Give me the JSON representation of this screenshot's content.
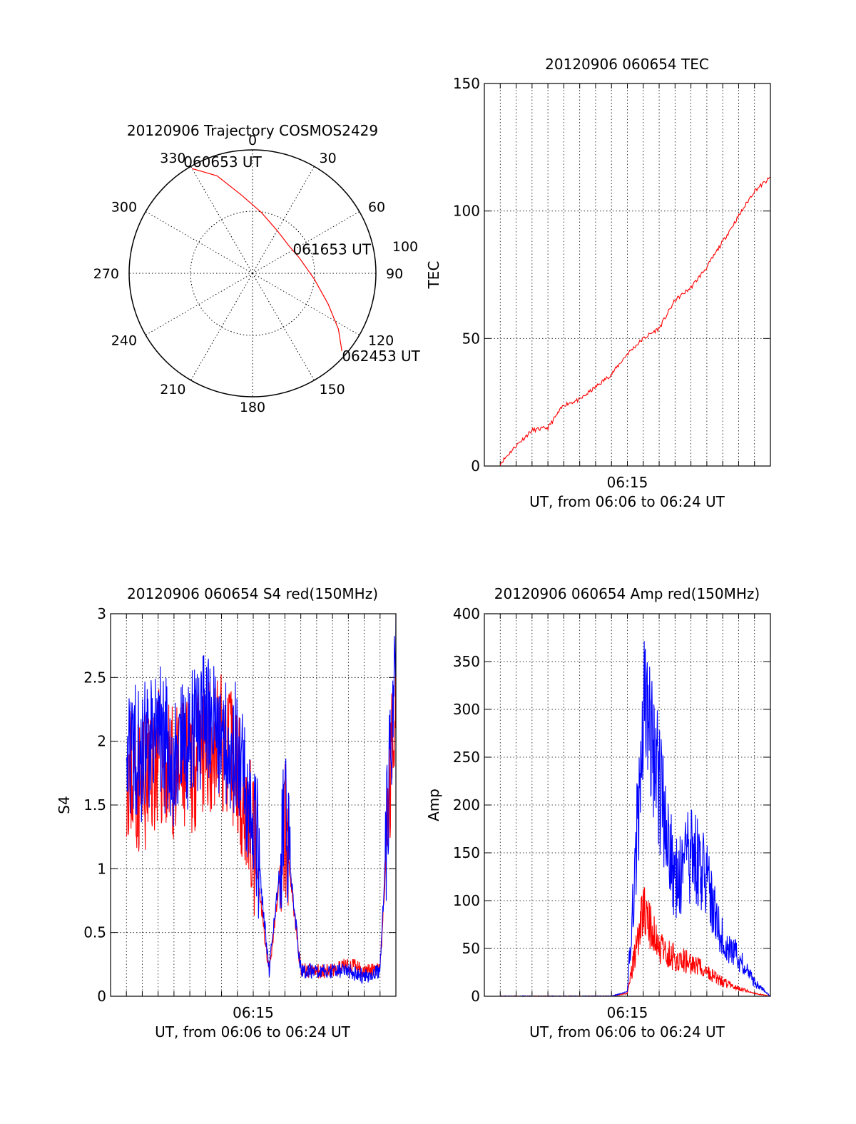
{
  "colors": {
    "red": "#ff0000",
    "blue": "#0000ff",
    "axis": "#000000",
    "grid": "#000000"
  },
  "chart_data": [
    {
      "id": "trajectory",
      "type": "polar",
      "title": "20120906 Trajectory COSMOS2429",
      "azimuth_ticks": [
        "0",
        "30",
        "60",
        "90",
        "120",
        "150",
        "180",
        "210",
        "240",
        "270",
        "300",
        "330"
      ],
      "extra_label": "100",
      "track": [
        {
          "az": 330,
          "el_frac": 0.98
        },
        {
          "az": 340,
          "el_frac": 0.84
        },
        {
          "az": 352,
          "el_frac": 0.64
        },
        {
          "az": 8,
          "el_frac": 0.5
        },
        {
          "az": 30,
          "el_frac": 0.4
        },
        {
          "az": 52,
          "el_frac": 0.37
        },
        {
          "az": 72,
          "el_frac": 0.4
        },
        {
          "az": 95,
          "el_frac": 0.5
        },
        {
          "az": 112,
          "el_frac": 0.66
        },
        {
          "az": 123,
          "el_frac": 0.83
        },
        {
          "az": 131,
          "el_frac": 0.96
        }
      ],
      "time_labels": [
        {
          "text": "060653 UT",
          "at": "start"
        },
        {
          "text": "061653 UT",
          "at": "middle"
        },
        {
          "text": "062453 UT",
          "at": "end"
        }
      ]
    },
    {
      "id": "tec",
      "type": "line",
      "title": "20120906 060654 TEC",
      "xlabel": "UT, from 06:06 to 06:24 UT",
      "ylabel": "TEC",
      "xlim": [
        "06:06",
        "06:24"
      ],
      "ylim": [
        0,
        150
      ],
      "yticks": [
        "0",
        "50",
        "100",
        "150"
      ],
      "xticks": [
        "06:15"
      ],
      "grid": true,
      "series": [
        {
          "color": "red",
          "x": [
            "06:07",
            "06:08",
            "06:09",
            "06:10",
            "06:11",
            "06:12",
            "06:13",
            "06:14",
            "06:15",
            "06:16",
            "06:17",
            "06:18",
            "06:19",
            "06:20",
            "06:21",
            "06:22",
            "06:23",
            "06:24"
          ],
          "y": [
            1,
            8,
            14,
            15,
            24,
            26,
            31,
            36,
            44,
            50,
            54,
            65,
            70,
            78,
            88,
            98,
            108,
            113
          ]
        }
      ]
    },
    {
      "id": "s4",
      "type": "line",
      "title": "20120906 060654 S4 red(150MHz)",
      "xlabel": "UT, from 06:06 to 06:24 UT",
      "ylabel": "S4",
      "xlim": [
        "06:06",
        "06:24"
      ],
      "ylim": [
        0,
        3
      ],
      "yticks": [
        "0",
        "0.5",
        "1",
        "1.5",
        "2",
        "2.5",
        "3"
      ],
      "xticks": [
        "06:15"
      ],
      "grid": true,
      "series": [
        {
          "color": "red",
          "x": [
            "06:07",
            "06:08",
            "06:09",
            "06:10",
            "06:11",
            "06:12",
            "06:13",
            "06:14",
            "06:15",
            "06:16",
            "06:17",
            "06:18",
            "06:19",
            "06:20",
            "06:21",
            "06:22",
            "06:23",
            "06:24"
          ],
          "y": [
            1.8,
            1.6,
            1.9,
            1.7,
            1.8,
            1.9,
            2.0,
            1.8,
            1.2,
            0.2,
            1.3,
            0.2,
            0.2,
            0.2,
            0.25,
            0.2,
            0.2,
            2.5
          ]
        },
        {
          "color": "blue",
          "x": [
            "06:07",
            "06:08",
            "06:09",
            "06:10",
            "06:11",
            "06:12",
            "06:13",
            "06:14",
            "06:15",
            "06:16",
            "06:17",
            "06:18",
            "06:19",
            "06:20",
            "06:21",
            "06:22",
            "06:23",
            "06:24"
          ],
          "y": [
            2.0,
            1.9,
            2.1,
            1.8,
            2.0,
            2.2,
            2.1,
            1.9,
            1.5,
            0.2,
            1.4,
            0.2,
            0.2,
            0.2,
            0.2,
            0.15,
            0.2,
            2.8
          ]
        }
      ]
    },
    {
      "id": "amp",
      "type": "line",
      "title": "20120906 060654 Amp red(150MHz)",
      "xlabel": "UT, from 06:06 to 06:24 UT",
      "ylabel": "Amp",
      "xlim": [
        "06:06",
        "06:24"
      ],
      "ylim": [
        0,
        400
      ],
      "yticks": [
        "0",
        "50",
        "100",
        "150",
        "200",
        "250",
        "300",
        "350",
        "400"
      ],
      "xticks": [
        "06:15"
      ],
      "grid": true,
      "series": [
        {
          "color": "red",
          "x": [
            "06:07",
            "06:08",
            "06:09",
            "06:10",
            "06:11",
            "06:12",
            "06:13",
            "06:14",
            "06:15",
            "06:16",
            "06:17",
            "06:18",
            "06:19",
            "06:20",
            "06:21",
            "06:22",
            "06:23",
            "06:24"
          ],
          "y": [
            0,
            0,
            0,
            0,
            0,
            0,
            0,
            0,
            3,
            90,
            50,
            40,
            35,
            25,
            15,
            8,
            3,
            0
          ]
        },
        {
          "color": "blue",
          "x": [
            "06:07",
            "06:08",
            "06:09",
            "06:10",
            "06:11",
            "06:12",
            "06:13",
            "06:14",
            "06:15",
            "06:16",
            "06:17",
            "06:18",
            "06:19",
            "06:20",
            "06:21",
            "06:22",
            "06:23",
            "06:24"
          ],
          "y": [
            0,
            0,
            0,
            0,
            0,
            0,
            0,
            0,
            5,
            280,
            220,
            120,
            150,
            120,
            60,
            40,
            15,
            0
          ]
        }
      ]
    }
  ]
}
